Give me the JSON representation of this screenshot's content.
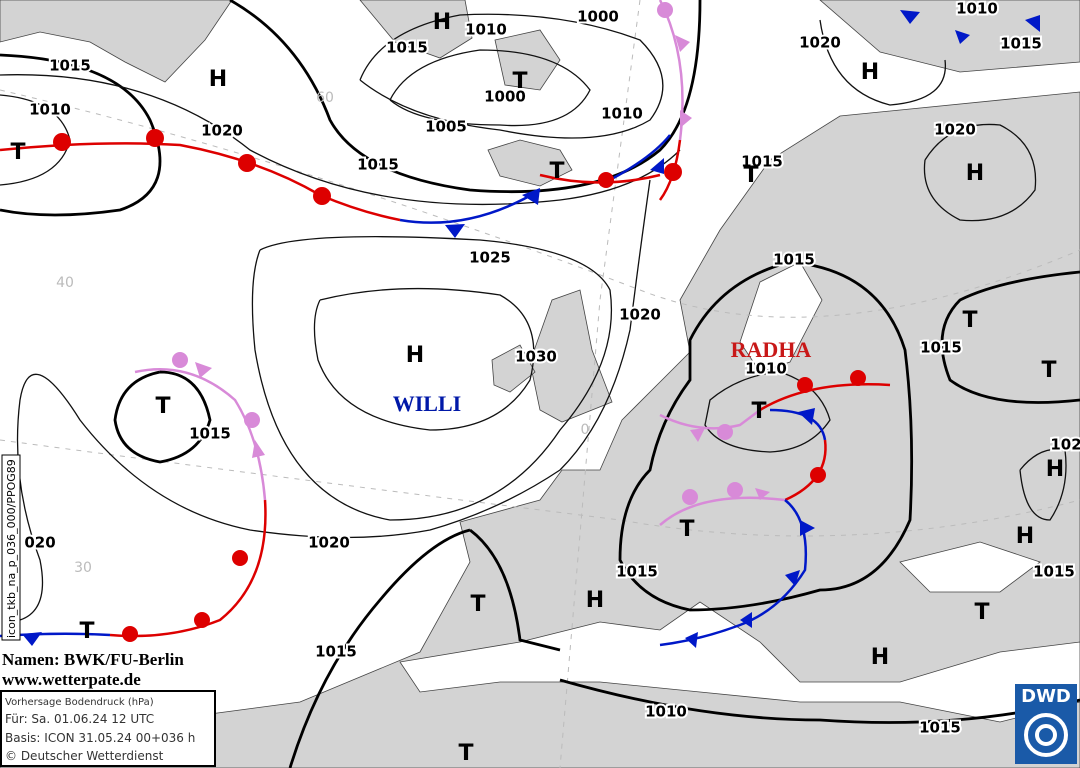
{
  "isobar_labels": [
    "1015",
    "1010",
    "1020",
    "1015",
    "1015",
    "1010",
    "1000",
    "1000",
    "1005",
    "1010",
    "1025",
    "1020",
    "1030",
    "1015",
    "1020",
    "020",
    "1015",
    "1015",
    "1010",
    "1015",
    "1015",
    "1015",
    "1010",
    "1015",
    "1020",
    "1020",
    "1010",
    "1015",
    "102",
    "1015"
  ],
  "systems": [
    "H",
    "H",
    "T",
    "T",
    "T",
    "T",
    "H",
    "T",
    "H",
    "H",
    "T",
    "T",
    "T",
    "H",
    "H",
    "T",
    "T",
    "H",
    "T",
    "T",
    "H",
    "T"
  ],
  "names": [
    "WILLI",
    "RADHA"
  ],
  "graticule_labels": [
    "40",
    "30",
    "0",
    "60"
  ],
  "credits": {
    "names": "Namen: BWK/FU-Berlin",
    "website": "www.wetterpate.de"
  },
  "info_box": {
    "title": "Vorhersage Bodendruck (hPa)",
    "valid": "Für:  Sa. 01.06.24  12 UTC",
    "basis": "Basis: ICON  31.05.24 00+036 h",
    "copyright": "© Deutscher Wetterdienst"
  },
  "side_code": "icon_tkb_na_p_036_000/PPOG89",
  "logo": "DWD"
}
